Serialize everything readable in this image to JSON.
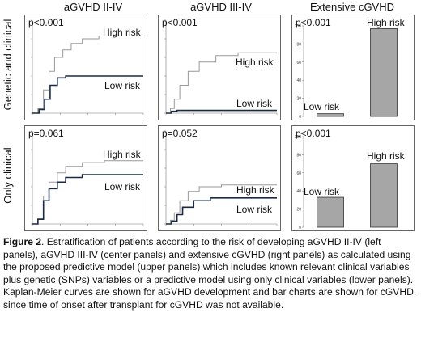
{
  "columns": [
    "aGVHD II-IV",
    "aGVHD III-IV",
    "Extensive cGVHD"
  ],
  "rows": [
    "Genetic and clinical",
    "Only clinical"
  ],
  "panels": [
    {
      "pvalue": "p<0.001",
      "high_label": "High risk",
      "low_label": "Low risk"
    },
    {
      "pvalue": "p<0.001",
      "high_label": "High risk",
      "low_label": "Low risk"
    },
    {
      "pvalue": "p<0.001",
      "high_label": "High risk",
      "low_label": "Low risk"
    },
    {
      "pvalue": "p=0.061",
      "high_label": "High risk",
      "low_label": "Low risk"
    },
    {
      "pvalue": "p=0.052",
      "high_label": "High risk",
      "low_label": "Low risk"
    },
    {
      "pvalue": "p<0.001",
      "high_label": "High risk",
      "low_label": "Low risk"
    }
  ],
  "chart_data": [
    {
      "type": "line",
      "panel": "top-left",
      "series": [
        {
          "name": "High risk",
          "x": [
            0,
            10,
            20,
            30,
            40,
            55,
            70,
            90,
            120,
            200
          ],
          "y": [
            0,
            0.05,
            0.25,
            0.45,
            0.6,
            0.68,
            0.75,
            0.8,
            0.83,
            0.83
          ]
        },
        {
          "name": "Low risk",
          "x": [
            0,
            12,
            22,
            32,
            45,
            60,
            200
          ],
          "y": [
            0,
            0.04,
            0.15,
            0.3,
            0.38,
            0.4,
            0.4
          ]
        }
      ],
      "xlim": [
        0,
        200
      ],
      "ylim": [
        0,
        1
      ]
    },
    {
      "type": "line",
      "panel": "top-center",
      "series": [
        {
          "name": "High risk",
          "x": [
            0,
            8,
            15,
            25,
            40,
            60,
            90,
            130,
            200
          ],
          "y": [
            0,
            0.05,
            0.15,
            0.3,
            0.45,
            0.55,
            0.62,
            0.65,
            0.65
          ]
        },
        {
          "name": "Low risk",
          "x": [
            0,
            10,
            20,
            200
          ],
          "y": [
            0,
            0.02,
            0.03,
            0.03
          ]
        }
      ],
      "xlim": [
        0,
        200
      ],
      "ylim": [
        0,
        1
      ]
    },
    {
      "type": "bar",
      "panel": "top-right",
      "categories": [
        "Low risk",
        "High risk"
      ],
      "values": [
        3,
        97
      ],
      "ylim": [
        0,
        100
      ],
      "yticks": [
        "0",
        "20",
        "40",
        "60",
        "80",
        "100"
      ]
    },
    {
      "type": "line",
      "panel": "bottom-left",
      "series": [
        {
          "name": "High risk",
          "x": [
            0,
            10,
            20,
            30,
            45,
            60,
            90,
            130,
            200
          ],
          "y": [
            0,
            0.06,
            0.3,
            0.45,
            0.55,
            0.62,
            0.66,
            0.68,
            0.68
          ]
        },
        {
          "name": "Low risk",
          "x": [
            0,
            10,
            20,
            30,
            45,
            60,
            90,
            200
          ],
          "y": [
            0,
            0.05,
            0.25,
            0.38,
            0.45,
            0.5,
            0.53,
            0.53
          ]
        }
      ],
      "xlim": [
        0,
        200
      ],
      "ylim": [
        0,
        1
      ]
    },
    {
      "type": "line",
      "panel": "bottom-center",
      "series": [
        {
          "name": "High risk",
          "x": [
            0,
            8,
            15,
            25,
            40,
            60,
            100,
            200
          ],
          "y": [
            0,
            0.04,
            0.12,
            0.25,
            0.35,
            0.4,
            0.42,
            0.42
          ]
        },
        {
          "name": "Low risk",
          "x": [
            0,
            10,
            20,
            30,
            50,
            80,
            200
          ],
          "y": [
            0,
            0.03,
            0.1,
            0.18,
            0.25,
            0.28,
            0.28
          ]
        }
      ],
      "xlim": [
        0,
        200
      ],
      "ylim": [
        0,
        1
      ]
    },
    {
      "type": "bar",
      "panel": "bottom-right",
      "categories": [
        "Low risk",
        "High risk"
      ],
      "values": [
        33,
        70
      ],
      "ylim": [
        0,
        100
      ],
      "yticks": [
        "0",
        "20",
        "40",
        "60",
        "80",
        "100"
      ]
    }
  ],
  "caption": {
    "figure_label": "Figure 2",
    "text": ". Estratification of patients according to the risk of developing aGVHD II-IV (left panels), aGVHD III-IV (center panels) and extensive cGVHD (right panels) as calculated using the proposed predictive model (upper panels) which includes known relevant clinical variables plus genetic (SNPs) variables or a predictive model using only clinical variables (lower panels). Kaplan-Meier curves are shown for aGVHD development and bar charts are shown for cGVHD, since time of onset after transplant for cGVHD was not available."
  },
  "colors": {
    "high_line": "#999999",
    "low_line": "#1a2a44",
    "bar_fill": "#a6a6a6"
  }
}
